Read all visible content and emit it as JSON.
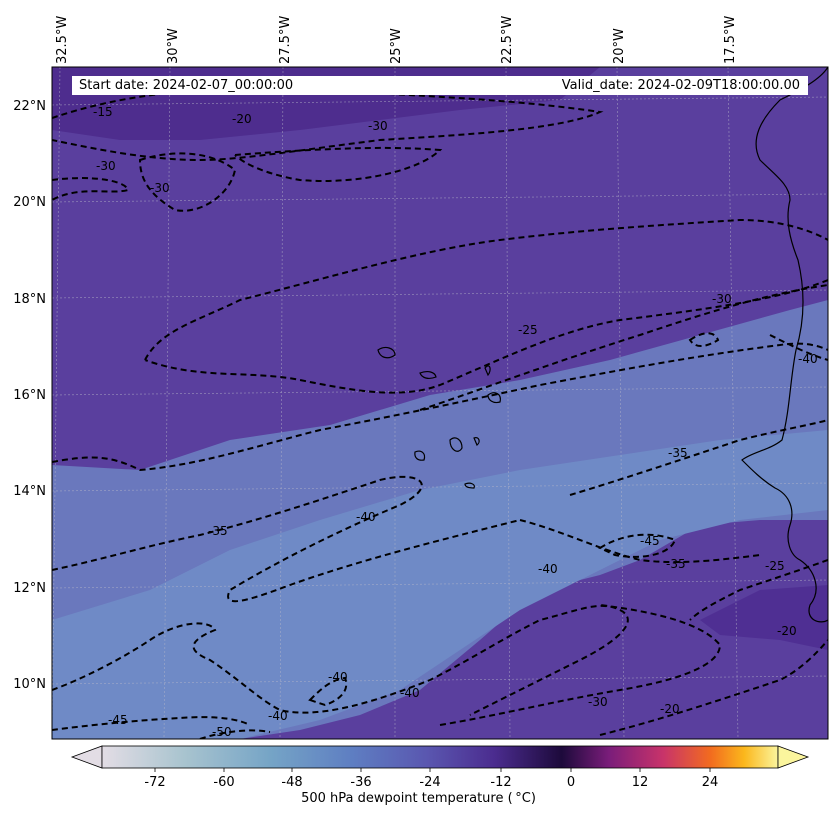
{
  "banner": {
    "start_label": "Start date: 2024-02-07_00:00:00",
    "valid_label": "Valid_date: 2024-02-09T18:00:00.00"
  },
  "map": {
    "region": "Eastern tropical North Atlantic / West African coast",
    "field": "500 hPa dewpoint temperature",
    "contour_style": "black dashed",
    "longitude_labels": [
      "32.5°W",
      "30°W",
      "27.5°W",
      "25°W",
      "22.5°W",
      "20°W",
      "17.5°W"
    ],
    "latitude_labels": [
      "22°N",
      "20°N",
      "18°N",
      "16°N",
      "14°N",
      "12°N",
      "10°N"
    ],
    "contour_labels": [
      "-15",
      "-20",
      "-30",
      "-30",
      "-30",
      "-25",
      "-30",
      "-40",
      "-35",
      "-35",
      "-40",
      "-45",
      "-40",
      "-35",
      "-25",
      "-20",
      "-40",
      "-40",
      "-30",
      "-20",
      "-45",
      "-50",
      "-40"
    ],
    "colors": {
      "background_field": "#5a3d9e",
      "moist_band": "#6a73bb",
      "dry_band": "#6e86c2",
      "coastline": "#000000",
      "gridline": "#b9b9c9"
    }
  },
  "colorbar": {
    "ticks": [
      "-72",
      "-60",
      "-48",
      "-36",
      "-24",
      "-12",
      "0",
      "12",
      "24"
    ],
    "title": "500 hPa dewpoint temperature ( °C)",
    "colormap_stops": [
      "#e3dde5",
      "#a9c4cf",
      "#75a4c6",
      "#5e7ec2",
      "#5a57b0",
      "#4b2c8f",
      "#1d0a3b",
      "#7a1d7a",
      "#c8336a",
      "#f26b1f",
      "#fbb71c",
      "#fbf59d"
    ],
    "extend": "both"
  }
}
